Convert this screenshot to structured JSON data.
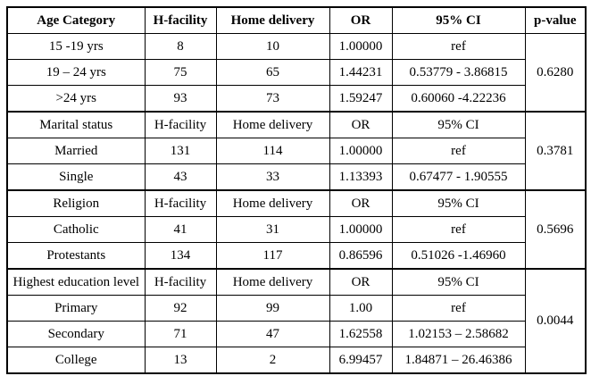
{
  "colors": {
    "border": "#000000",
    "background": "#ffffff",
    "text": "#000000"
  },
  "table": {
    "header": [
      "Age Category",
      "H-facility",
      "Home delivery",
      "OR",
      "95% CI",
      "p-value"
    ],
    "sections": [
      {
        "rows": [
          [
            "15 -19 yrs",
            "8",
            "10",
            "1.00000",
            "ref"
          ],
          [
            "19 – 24 yrs",
            "75",
            "65",
            "1.44231",
            "0.53779 - 3.86815"
          ],
          [
            ">24 yrs",
            "93",
            "73",
            "1.59247",
            "0.60060 -4.22236"
          ]
        ],
        "p_value": "0.6280"
      },
      {
        "sub": [
          "Marital status",
          "H-facility",
          "Home delivery",
          "OR",
          "95% CI"
        ],
        "rows": [
          [
            "Married",
            "131",
            "114",
            "1.00000",
            "ref"
          ],
          [
            "Single",
            "43",
            "33",
            "1.13393",
            "0.67477 - 1.90555"
          ]
        ],
        "p_value": "0.3781"
      },
      {
        "sub": [
          "Religion",
          "H-facility",
          "Home delivery",
          "OR",
          "95% CI"
        ],
        "rows": [
          [
            "Catholic",
            "41",
            "31",
            "1.00000",
            "ref"
          ],
          [
            "Protestants",
            "134",
            "117",
            "0.86596",
            "0.51026 -1.46960"
          ]
        ],
        "p_value": "0.5696"
      },
      {
        "sub": [
          "Highest education level",
          "H-facility",
          "Home delivery",
          "OR",
          "95% CI"
        ],
        "rows": [
          [
            "Primary",
            "92",
            "99",
            "1.00",
            "ref"
          ],
          [
            "Secondary",
            "71",
            "47",
            "1.62558",
            "1.02153 – 2.58682"
          ],
          [
            "College",
            "13",
            "2",
            "6.99457",
            "1.84871 – 26.46386"
          ]
        ],
        "p_value": "0.0044"
      }
    ]
  }
}
